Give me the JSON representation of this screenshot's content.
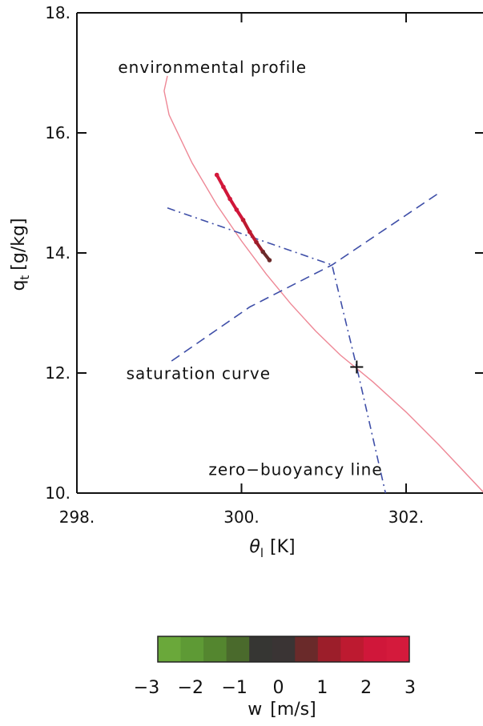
{
  "chart_data": {
    "type": "line",
    "xlabel_symbol": "θ",
    "xlabel_sub": "l",
    "xlabel_unit": "[K]",
    "ylabel_symbol": "q",
    "ylabel_sub": "t",
    "ylabel_unit": "[g/kg]",
    "xlim": [
      298,
      303
    ],
    "ylim": [
      10,
      18
    ],
    "x_ticks": [
      298,
      300,
      302
    ],
    "x_tick_labels": [
      "298.",
      "300.",
      "302."
    ],
    "y_ticks": [
      10,
      12,
      14,
      16,
      18
    ],
    "y_tick_labels": [
      "10.",
      "12.",
      "14.",
      "16.",
      "18."
    ],
    "annotations": [
      {
        "text": "environmental profile",
        "x": 298.5,
        "y": 17.0
      },
      {
        "text": "saturation curve",
        "x": 298.6,
        "y": 11.9
      },
      {
        "text": "zero−buoyancy line",
        "x": 299.6,
        "y": 10.3
      }
    ],
    "series": [
      {
        "style": "solid",
        "color": "#ee8896",
        "x": [
          299.1,
          299.06,
          299.12,
          299.4,
          299.7,
          300.0,
          300.3,
          300.6,
          300.9,
          301.2,
          301.6,
          302.0,
          302.4,
          302.95
        ],
        "y": [
          16.95,
          16.7,
          16.3,
          15.5,
          14.8,
          14.2,
          13.65,
          13.15,
          12.7,
          12.3,
          11.85,
          11.35,
          10.8,
          10.0
        ]
      },
      {
        "style": "dashed",
        "color": "#3f4fa8",
        "x": [
          299.15,
          300.1,
          301.1,
          302.4
        ],
        "y": [
          12.2,
          13.1,
          13.8,
          15.0
        ]
      },
      {
        "style": "dashdot",
        "color": "#3f4fa8",
        "x": [
          299.1,
          301.1,
          301.4,
          301.75
        ],
        "y": [
          14.75,
          13.8,
          12.1,
          10.0
        ]
      },
      {
        "style": "scatter",
        "color_by": "w",
        "x": [
          299.7,
          299.78,
          299.86,
          299.94,
          300.02,
          300.1,
          300.18,
          300.26,
          300.34
        ],
        "y": [
          15.3,
          15.1,
          14.9,
          14.72,
          14.55,
          14.35,
          14.18,
          14.02,
          13.88
        ],
        "w": [
          2.5,
          2.4,
          2.2,
          2.0,
          1.7,
          1.4,
          1.1,
          0.7,
          0.3
        ]
      }
    ],
    "marker": {
      "symbol": "+",
      "x": 301.4,
      "y": 12.1
    },
    "colorbar": {
      "label_symbol": "w",
      "label_unit": "[m/s]",
      "range": [
        -3,
        3
      ],
      "tick_values": [
        -3,
        -2,
        -1,
        0,
        1,
        2,
        3
      ],
      "tick_labels": [
        "−3",
        "−2",
        "−1",
        "0",
        "1",
        "2",
        "3"
      ],
      "colors": [
        "#6aa83a",
        "#5e9a35",
        "#54862f",
        "#4a6a2c",
        "#363633",
        "#3a3434",
        "#6a2a2a",
        "#9c1e2a",
        "#bd1a30",
        "#d0173a",
        "#d41a3c"
      ]
    }
  }
}
